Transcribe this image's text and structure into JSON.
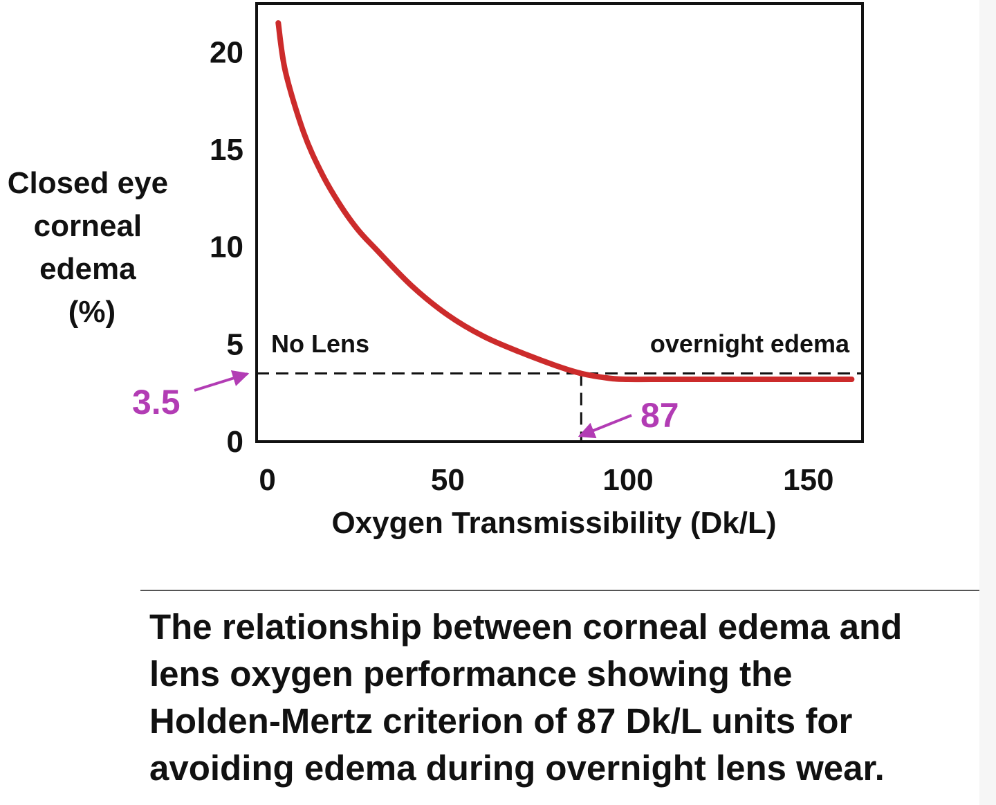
{
  "chart_data": {
    "type": "line",
    "title": "",
    "xlabel": "Oxygen Transmissibility (Dk/L)",
    "ylabel_lines": [
      "Closed eye",
      "corneal",
      "edema",
      "(%)"
    ],
    "xlim": [
      -3,
      165
    ],
    "ylim": [
      0,
      22.5
    ],
    "x_ticks": [
      0,
      50,
      100,
      150
    ],
    "y_ticks": [
      0,
      5,
      10,
      15,
      20
    ],
    "grid": false,
    "legend": "none",
    "series": [
      {
        "color": "#cc2b2b",
        "x": [
          3,
          5,
          10,
          15,
          20,
          25,
          30,
          40,
          50,
          60,
          70,
          80,
          87,
          95,
          100,
          110,
          120,
          130,
          140,
          150,
          162
        ],
        "y": [
          21.5,
          19.0,
          15.9,
          13.8,
          12.2,
          10.9,
          9.9,
          8.0,
          6.5,
          5.4,
          4.6,
          3.9,
          3.5,
          3.25,
          3.2,
          3.2,
          3.2,
          3.2,
          3.2,
          3.2,
          3.2
        ]
      }
    ],
    "reference_lines": {
      "horizontal_y": 3.5,
      "vertical_x": 87,
      "style": "dashed",
      "color": "#111111"
    },
    "annotations": {
      "left_region_label": "No Lens",
      "right_region_label": "overnight edema",
      "y_callout": {
        "text": "3.5",
        "value": 3.5,
        "color": "#b23cb4"
      },
      "x_callout": {
        "text": "87",
        "value": 87,
        "color": "#b23cb4"
      }
    }
  },
  "caption": {
    "text": "The relationship between corneal edema and\nlens oxygen performance showing the\nHolden-Mertz criterion of 87 Dk/L units for\navoiding edema during overnight lens wear."
  }
}
